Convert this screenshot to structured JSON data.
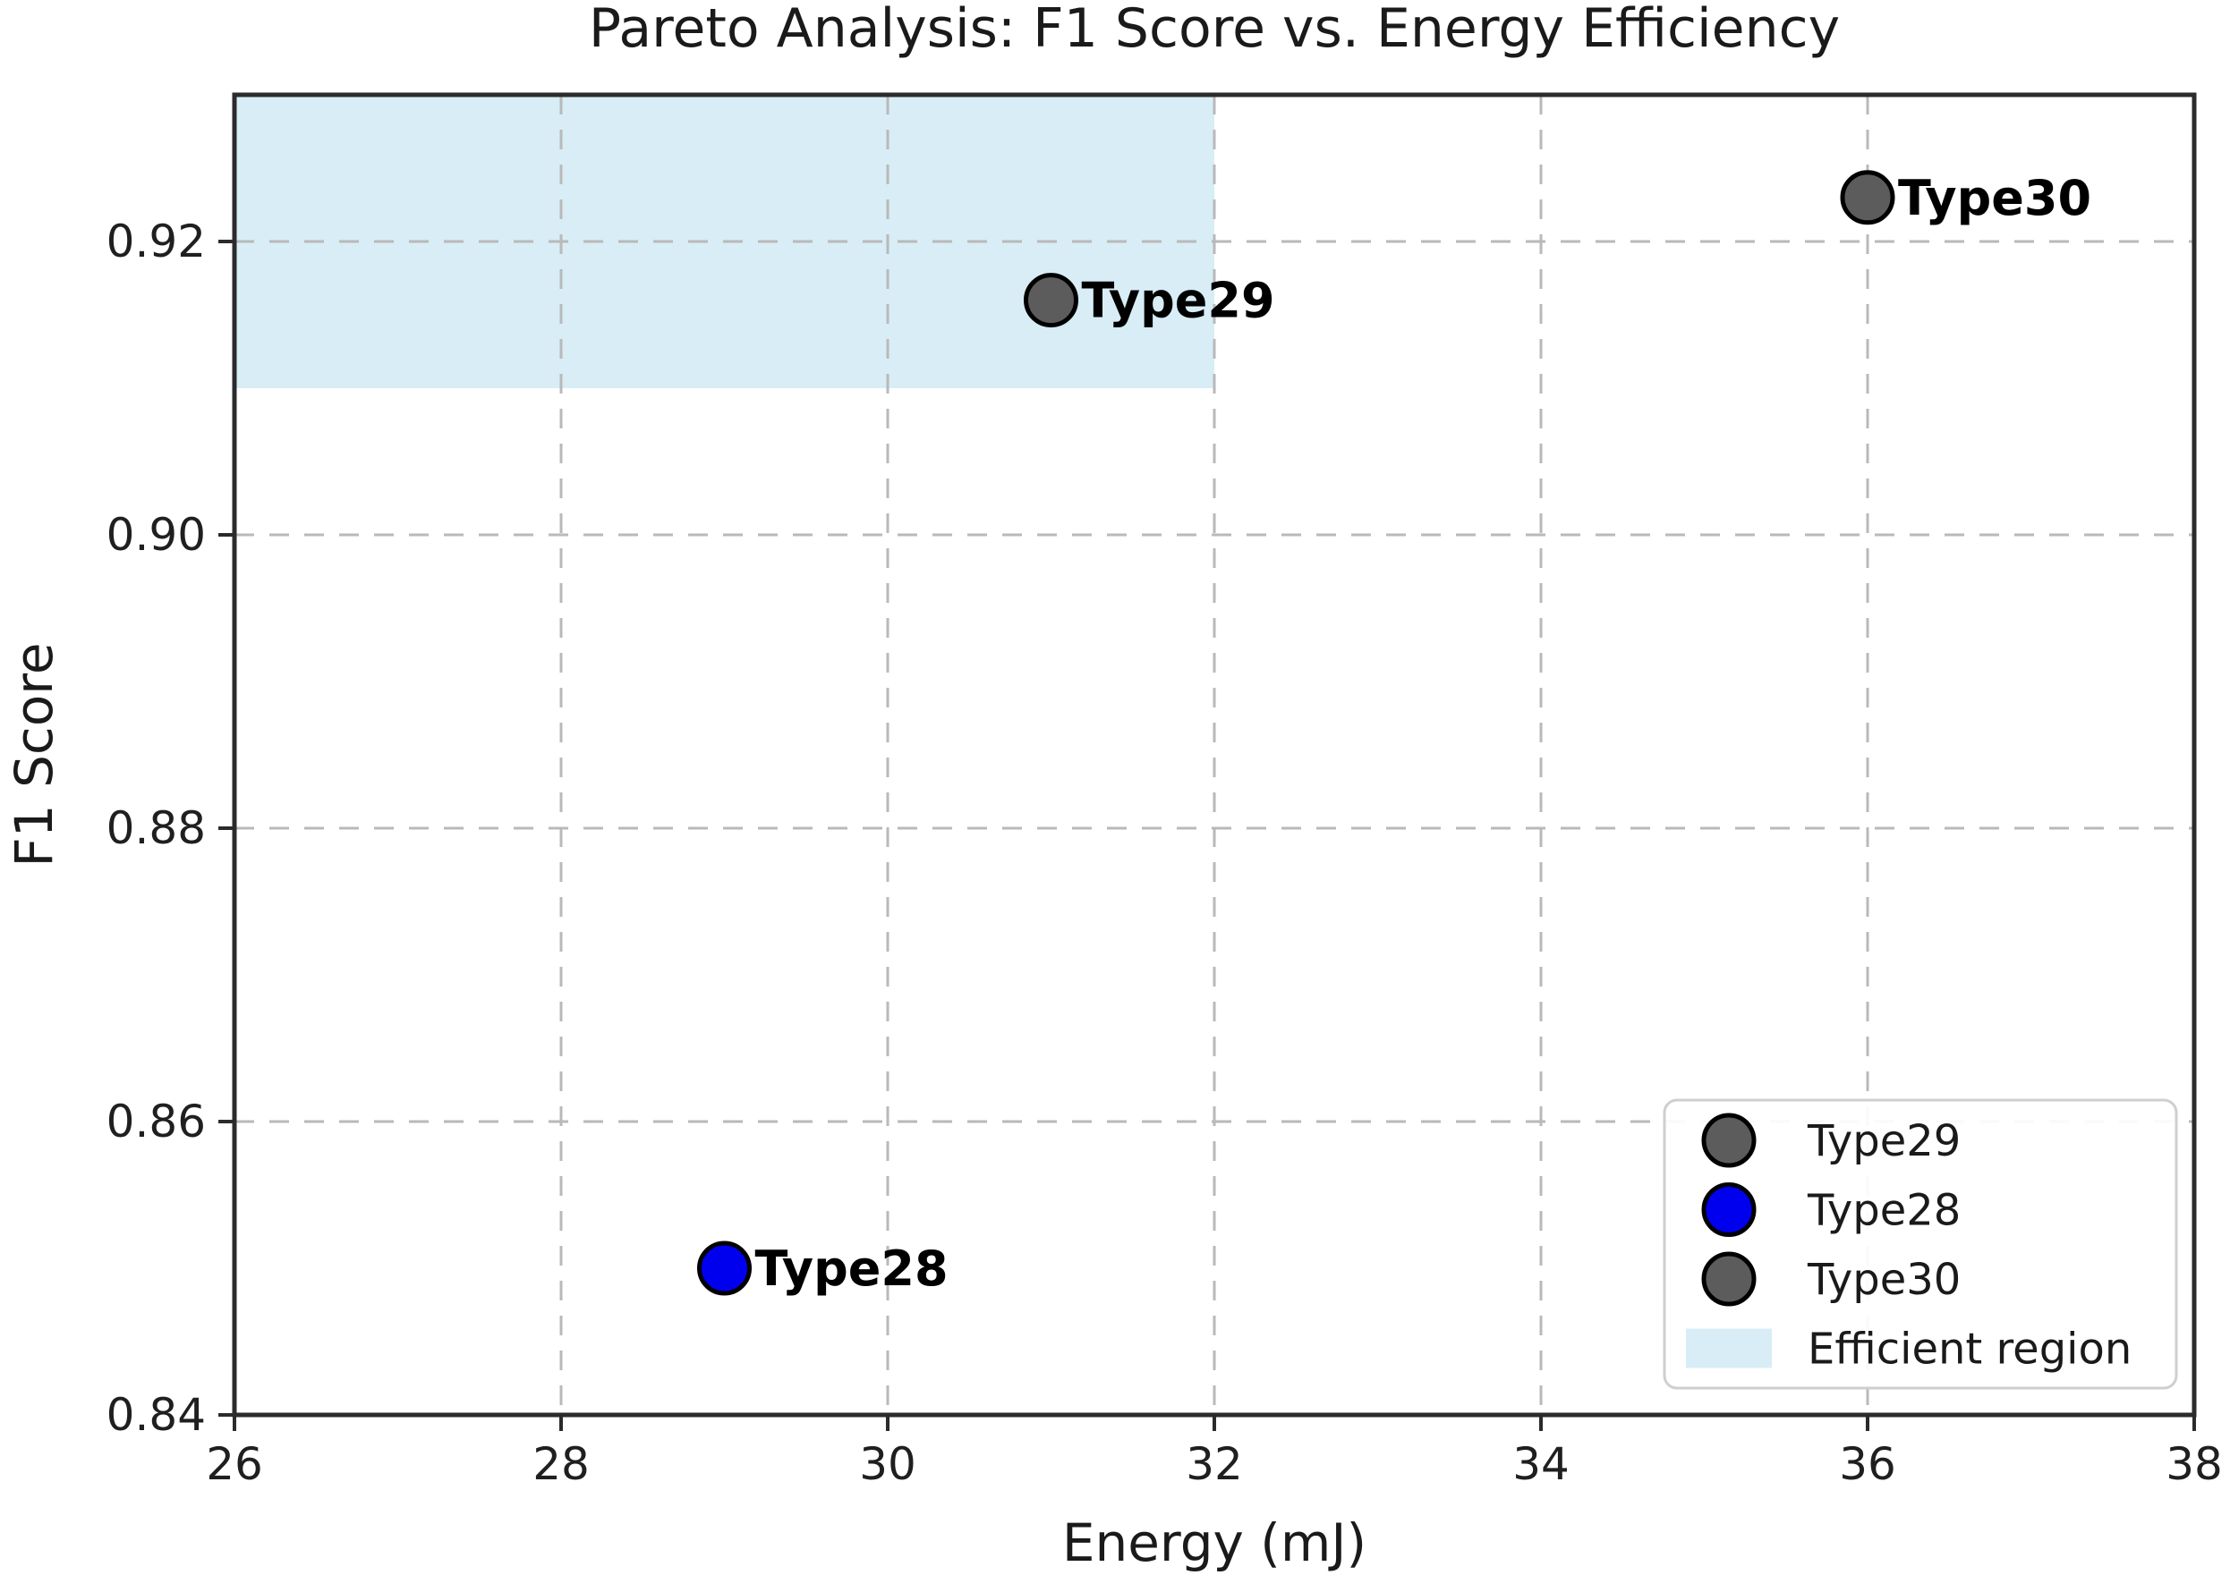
{
  "figure": {
    "background": "#ffffff"
  },
  "chart_data": {
    "type": "scatter",
    "title": "Pareto Analysis: F1 Score vs. Energy Efficiency",
    "xlabel": "Energy (mJ)",
    "ylabel": "F1 Score",
    "xlim": [
      26,
      38
    ],
    "ylim": [
      0.84,
      0.93
    ],
    "x_ticks": [
      26,
      28,
      30,
      32,
      34,
      36,
      38
    ],
    "x_tick_labels": [
      "26",
      "28",
      "30",
      "32",
      "34",
      "36",
      "38"
    ],
    "y_ticks": [
      0.84,
      0.86,
      0.88,
      0.9,
      0.92
    ],
    "y_tick_labels": [
      "0.84",
      "0.86",
      "0.88",
      "0.90",
      "0.92"
    ],
    "grid": true,
    "grid_style": "dashed",
    "legend_position": "lower right",
    "points": [
      {
        "label": "Type29",
        "x": 31,
        "y": 0.916,
        "color": "#5c5c5c",
        "edge_color": "#000000"
      },
      {
        "label": "Type28",
        "x": 29,
        "y": 0.85,
        "color": "#0000ee",
        "edge_color": "#000000"
      },
      {
        "label": "Type30",
        "x": 36,
        "y": 0.923,
        "color": "#5c5c5c",
        "edge_color": "#000000"
      }
    ],
    "efficient_region": {
      "label": "Efficient region",
      "x_min": 26,
      "x_max": 32,
      "y_min": 0.91,
      "y_max": 0.93,
      "color": "#d8edf6"
    },
    "legend": {
      "entries": [
        {
          "label": "Type29",
          "marker": "circle",
          "color": "#5c5c5c"
        },
        {
          "label": "Type28",
          "marker": "circle",
          "color": "#0000ee"
        },
        {
          "label": "Type30",
          "marker": "circle",
          "color": "#5c5c5c"
        },
        {
          "label": "Efficient region",
          "marker": "patch",
          "color": "#d8edf6"
        }
      ]
    },
    "style": {
      "spine_color": "#2b2b2b",
      "grid_color": "#b9b9b9",
      "tick_color": "#2b2b2b",
      "legend_border_color": "#cfcfcf",
      "legend_background": "#ffffff"
    }
  }
}
